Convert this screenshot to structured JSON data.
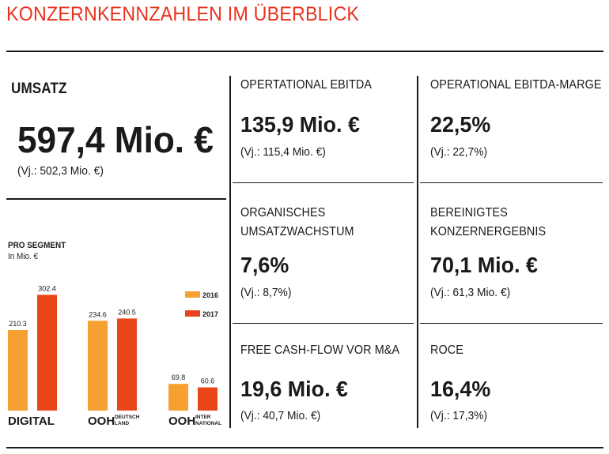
{
  "page": {
    "title": "KONZERNKENNZAHLEN IM ÜBERBLICK"
  },
  "umsatz": {
    "label": "UMSATZ",
    "value": "597,4 Mio. €",
    "prev": "(Vj.: 502,3 Mio. €)"
  },
  "kpis": {
    "ebitda": {
      "label": "OPERTATIONAL EBITDA",
      "value": "135,9 Mio. €",
      "prev": "(Vj.: 115,4 Mio. €)"
    },
    "marge": {
      "label": "OPERATIONAL EBITDA-MARGE",
      "value": "22,5%",
      "prev": "(Vj.: 22,7%)"
    },
    "wachstum": {
      "label_line1": "ORGANISCHES",
      "label_line2": "UMSATZWACHSTUM",
      "value": "7,6%",
      "prev": "(Vj.: 8,7%)"
    },
    "ergebnis": {
      "label_line1": "BEREINIGTES",
      "label_line2": "KONZERNERGEBNIS",
      "value": "70,1 Mio. €",
      "prev": "(Vj.: 61,3 Mio. €)"
    },
    "cashflow": {
      "label": "FREE CASH-FLOW VOR M&A",
      "value": "19,6 Mio. €",
      "prev": "(Vj.: 40,7 Mio. €)"
    },
    "roce": {
      "label": "ROCE",
      "value": "16,4%",
      "prev": "(Vj.: 17,3%)"
    }
  },
  "chart_data": {
    "type": "bar",
    "title": "PRO SEGMENT",
    "subtitle": "In Mio. €",
    "categories": [
      {
        "main": "DIGITAL",
        "sub1": "",
        "sub2": ""
      },
      {
        "main": "OOH",
        "sub1": "DEUTSCH",
        "sub2": "LAND"
      },
      {
        "main": "OOH",
        "sub1": "INTER",
        "sub2": "NATIONAL"
      }
    ],
    "series": [
      {
        "name": "2016",
        "color": "#f5a030",
        "values": [
          210.3,
          234.6,
          69.8
        ],
        "labels": [
          "210.3",
          "234.6",
          "69.8"
        ]
      },
      {
        "name": "2017",
        "color": "#e8461a",
        "values": [
          302.4,
          240.5,
          60.6
        ],
        "labels": [
          "302.4",
          "240.5",
          "60.6"
        ]
      }
    ],
    "legend_position": "right",
    "grid": false
  }
}
